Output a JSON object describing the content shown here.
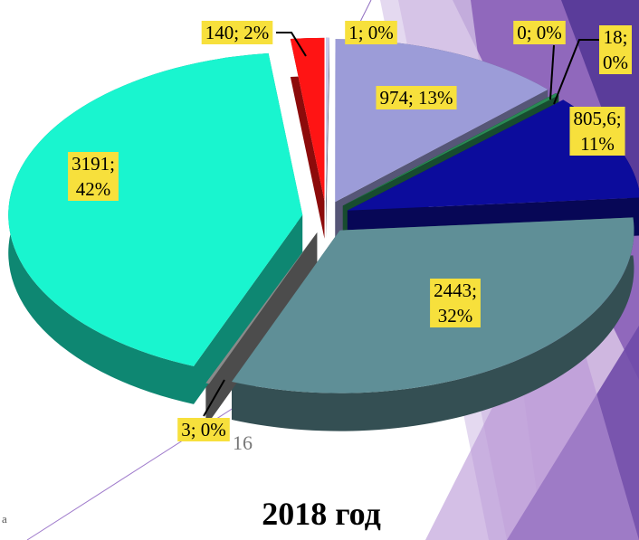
{
  "chart_data": {
    "type": "pie",
    "title": "2018 год",
    "slide_number": "16",
    "corner_text": "а",
    "categories": null,
    "values": [
      1,
      974,
      0,
      18,
      805.6,
      2443,
      3,
      3191,
      140
    ],
    "value_labels": [
      "1; 0%",
      "974; 13%",
      "0; 0%",
      "18;\n0%",
      "805,6;\n11%",
      "2443;\n32%",
      "3; 0%",
      "3191;\n42%",
      "140; 2%"
    ],
    "colors": [
      "#c8c8ea",
      "#9c9cd8",
      "#137a3c",
      "#2a8a55",
      "#0c0c9c",
      "#5f8f97",
      "#8a8a8a",
      "#19f5cf",
      "#ff1414"
    ],
    "label_color": "#f7e03c"
  }
}
